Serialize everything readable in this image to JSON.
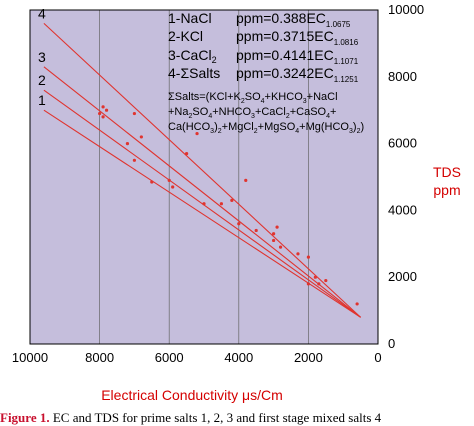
{
  "chart_data": {
    "type": "scatter",
    "title": "",
    "xlabel": "Electrical Conductivity μs/Cm",
    "ylabel_lines": [
      "TDS",
      "ppm"
    ],
    "xlim": [
      10000,
      0
    ],
    "ylim": [
      0,
      10000
    ],
    "x_reversed": true,
    "x_ticks": [
      10000,
      8000,
      6000,
      4000,
      2000,
      0
    ],
    "y_ticks": [
      0,
      2000,
      4000,
      6000,
      8000,
      10000
    ],
    "grid": "vertical",
    "background_color": "#c5bedc",
    "line_color": "#e0342f",
    "series": [
      {
        "name": "1",
        "trend": {
          "x": [
            9600,
            500
          ],
          "y": [
            7000,
            800
          ]
        },
        "points": {
          "x": [
            8000,
            7000,
            6500,
            5900,
            5000,
            4000,
            3000,
            2000
          ],
          "y": [
            6900,
            5500,
            4850,
            4700,
            4200,
            3600,
            3100,
            1800
          ]
        }
      },
      {
        "name": "2",
        "trend": {
          "x": [
            9600,
            500
          ],
          "y": [
            7600,
            800
          ]
        },
        "points": {
          "x": [
            7900,
            7200,
            6000,
            4500,
            3500,
            2800,
            1800
          ],
          "y": [
            6800,
            6000,
            4900,
            4200,
            3400,
            2900,
            2000
          ]
        }
      },
      {
        "name": "3",
        "trend": {
          "x": [
            9600,
            500
          ],
          "y": [
            8300,
            800
          ]
        },
        "points": {
          "x": [
            7800,
            6800,
            5500,
            4200,
            3000,
            2300,
            1700
          ],
          "y": [
            7000,
            6200,
            5700,
            4300,
            3300,
            2700,
            1800
          ]
        }
      },
      {
        "name": "4",
        "trend": {
          "x": [
            9600,
            500
          ],
          "y": [
            9600,
            800
          ]
        },
        "points": {
          "x": [
            7900,
            7000,
            5200,
            3800,
            2900,
            2000,
            1500,
            600
          ],
          "y": [
            7100,
            6900,
            6300,
            4900,
            3500,
            2600,
            1900,
            1200
          ]
        }
      }
    ],
    "equations": [
      {
        "label": "1-NaCl",
        "formula": "ppm=0.388EC",
        "exponent": "1.0675"
      },
      {
        "label": "2-KCl",
        "formula": "ppm=0.3715EC",
        "exponent": "1.0816"
      },
      {
        "label": "3-CaCl",
        "label_sub": "2",
        "formula": "ppm=0.4141EC",
        "exponent": "1.1071"
      },
      {
        "label": "4-ΣSalts",
        "formula": "ppm=0.3242EC",
        "exponent": "1.1251"
      }
    ],
    "composition": [
      {
        "text": "ΣSalts=(KCl+K",
        "sub": "2",
        "rest": "SO",
        "sub2": "4",
        "tail": "+KHCO",
        "sub3": "3",
        "end": "+NaCl"
      },
      {
        "text": "+Na",
        "sub": "2",
        "rest": "SO",
        "sub2": "4",
        "tail": "+NHCO",
        "sub3": "3",
        "end": "+CaCl",
        "sub4": "2",
        "end2": "+CaSO",
        "sub5": "4",
        "end3": "+"
      },
      {
        "text": "Ca(HCO",
        "sub": "3",
        "rest": ")",
        "sub2": "2",
        "tail": "+MgCl",
        "sub3": "2",
        "end": "+MgSO",
        "sub4": "4",
        "end2": "+Mg(HCO",
        "sub5": "3",
        "end3": ")",
        "sub6": "2",
        "end4": ")"
      }
    ]
  },
  "caption": {
    "lead": "Figure 1.",
    "text": "EC and TDS for prime salts 1, 2, 3 and first stage mixed salts 4"
  }
}
